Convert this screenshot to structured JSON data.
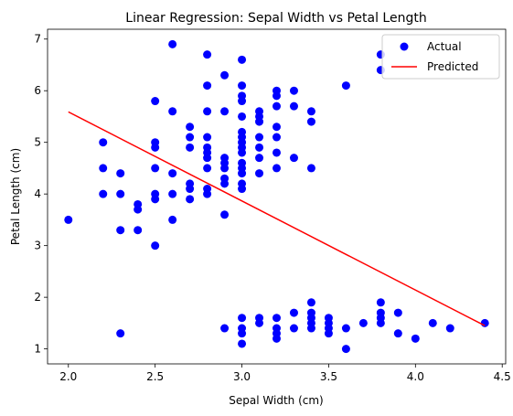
{
  "chart_data": {
    "type": "scatter",
    "title": "Linear Regression: Sepal Width vs Petal Length",
    "xlabel": "Sepal Width (cm)",
    "ylabel": "Petal Length (cm)",
    "xlim": [
      1.88,
      4.52
    ],
    "ylim": [
      0.71,
      7.19
    ],
    "xticks": [
      2.0,
      2.5,
      3.0,
      3.5,
      4.0,
      4.5
    ],
    "xtick_labels": [
      "2.0",
      "2.5",
      "3.0",
      "3.5",
      "4.0",
      "4.5"
    ],
    "yticks": [
      1,
      2,
      3,
      4,
      5,
      6,
      7
    ],
    "ytick_labels": [
      "1",
      "2",
      "3",
      "4",
      "5",
      "6",
      "7"
    ],
    "grid": false,
    "legend_position": "top-right",
    "series": [
      {
        "name": "Actual",
        "kind": "scatter",
        "color": "#0000ff",
        "points": [
          [
            2.0,
            3.5
          ],
          [
            2.2,
            5.0
          ],
          [
            2.2,
            4.5
          ],
          [
            2.2,
            4.0
          ],
          [
            2.3,
            4.4
          ],
          [
            2.3,
            4.0
          ],
          [
            2.3,
            3.3
          ],
          [
            2.3,
            1.3
          ],
          [
            2.4,
            3.8
          ],
          [
            2.4,
            3.7
          ],
          [
            2.4,
            3.3
          ],
          [
            2.5,
            5.8
          ],
          [
            2.5,
            5.0
          ],
          [
            2.5,
            4.9
          ],
          [
            2.5,
            4.5
          ],
          [
            2.5,
            4.0
          ],
          [
            2.5,
            3.9
          ],
          [
            2.5,
            3.0
          ],
          [
            2.6,
            6.9
          ],
          [
            2.6,
            5.6
          ],
          [
            2.6,
            4.4
          ],
          [
            2.6,
            4.0
          ],
          [
            2.6,
            3.5
          ],
          [
            2.7,
            5.3
          ],
          [
            2.7,
            5.1
          ],
          [
            2.7,
            4.9
          ],
          [
            2.7,
            4.2
          ],
          [
            2.7,
            4.1
          ],
          [
            2.7,
            3.9
          ],
          [
            2.8,
            6.7
          ],
          [
            2.8,
            6.1
          ],
          [
            2.8,
            5.6
          ],
          [
            2.8,
            5.1
          ],
          [
            2.8,
            4.9
          ],
          [
            2.8,
            4.8
          ],
          [
            2.8,
            4.7
          ],
          [
            2.8,
            4.5
          ],
          [
            2.8,
            4.1
          ],
          [
            2.8,
            4.0
          ],
          [
            2.9,
            6.3
          ],
          [
            2.9,
            5.6
          ],
          [
            2.9,
            4.7
          ],
          [
            2.9,
            4.6
          ],
          [
            2.9,
            4.5
          ],
          [
            2.9,
            4.3
          ],
          [
            2.9,
            4.2
          ],
          [
            2.9,
            3.6
          ],
          [
            2.9,
            1.4
          ],
          [
            3.0,
            6.6
          ],
          [
            3.0,
            6.1
          ],
          [
            3.0,
            5.9
          ],
          [
            3.0,
            5.8
          ],
          [
            3.0,
            5.5
          ],
          [
            3.0,
            5.2
          ],
          [
            3.0,
            5.1
          ],
          [
            3.0,
            5.0
          ],
          [
            3.0,
            4.9
          ],
          [
            3.0,
            4.8
          ],
          [
            3.0,
            4.6
          ],
          [
            3.0,
            4.5
          ],
          [
            3.0,
            4.4
          ],
          [
            3.0,
            4.2
          ],
          [
            3.0,
            4.1
          ],
          [
            3.0,
            1.6
          ],
          [
            3.0,
            1.4
          ],
          [
            3.0,
            1.3
          ],
          [
            3.0,
            1.1
          ],
          [
            3.1,
            5.6
          ],
          [
            3.1,
            5.5
          ],
          [
            3.1,
            5.4
          ],
          [
            3.1,
            5.1
          ],
          [
            3.1,
            4.9
          ],
          [
            3.1,
            4.7
          ],
          [
            3.1,
            4.4
          ],
          [
            3.1,
            1.6
          ],
          [
            3.1,
            1.5
          ],
          [
            3.2,
            6.0
          ],
          [
            3.2,
            5.9
          ],
          [
            3.2,
            5.7
          ],
          [
            3.2,
            5.3
          ],
          [
            3.2,
            5.1
          ],
          [
            3.2,
            4.8
          ],
          [
            3.2,
            4.5
          ],
          [
            3.2,
            1.6
          ],
          [
            3.2,
            1.4
          ],
          [
            3.2,
            1.3
          ],
          [
            3.2,
            1.2
          ],
          [
            3.3,
            6.0
          ],
          [
            3.3,
            5.7
          ],
          [
            3.3,
            4.7
          ],
          [
            3.3,
            1.7
          ],
          [
            3.3,
            1.4
          ],
          [
            3.4,
            5.6
          ],
          [
            3.4,
            5.4
          ],
          [
            3.4,
            4.5
          ],
          [
            3.4,
            1.9
          ],
          [
            3.4,
            1.7
          ],
          [
            3.4,
            1.6
          ],
          [
            3.4,
            1.5
          ],
          [
            3.4,
            1.4
          ],
          [
            3.5,
            1.6
          ],
          [
            3.5,
            1.5
          ],
          [
            3.5,
            1.4
          ],
          [
            3.5,
            1.3
          ],
          [
            3.6,
            6.1
          ],
          [
            3.6,
            1.4
          ],
          [
            3.6,
            1.0
          ],
          [
            3.7,
            1.5
          ],
          [
            3.8,
            6.7
          ],
          [
            3.8,
            6.4
          ],
          [
            3.8,
            1.9
          ],
          [
            3.8,
            1.7
          ],
          [
            3.8,
            1.6
          ],
          [
            3.8,
            1.5
          ],
          [
            3.9,
            1.7
          ],
          [
            3.9,
            1.3
          ],
          [
            4.0,
            1.2
          ],
          [
            4.1,
            1.5
          ],
          [
            4.2,
            1.4
          ],
          [
            4.4,
            1.5
          ]
        ]
      },
      {
        "name": "Predicted",
        "kind": "line",
        "color": "#ff0000",
        "points": [
          [
            2.0,
            5.59
          ],
          [
            4.4,
            1.45
          ]
        ]
      }
    ]
  }
}
